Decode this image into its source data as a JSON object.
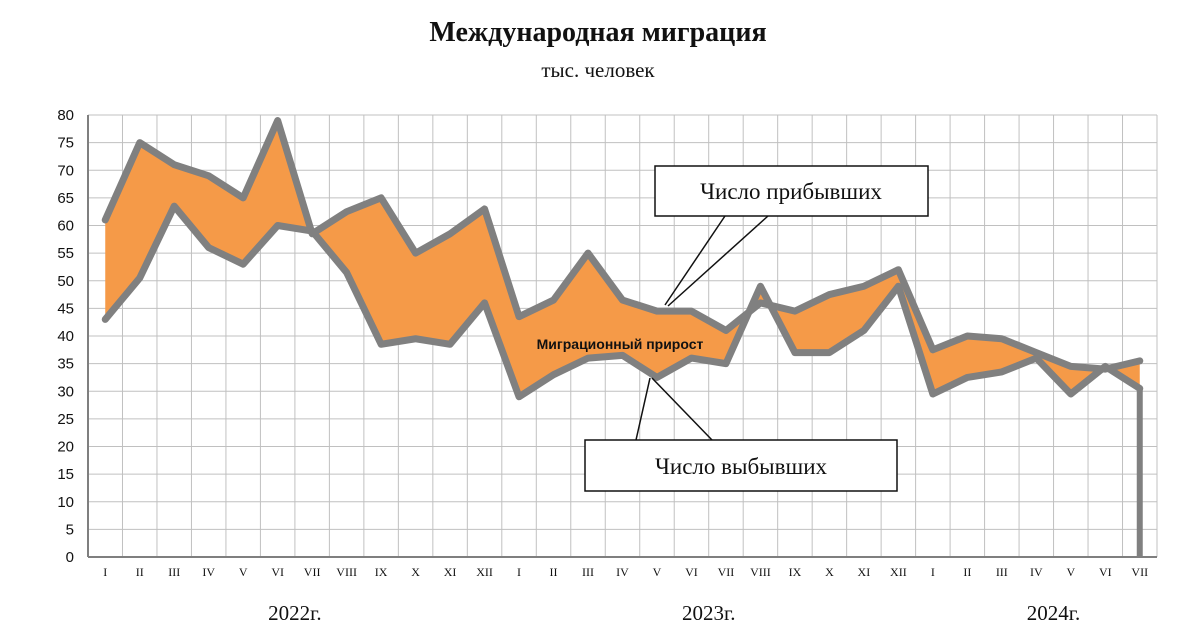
{
  "chart_data": {
    "type": "area",
    "title": "Международная миграция",
    "subtitle": "тыс. человек",
    "ylim": [
      0,
      80
    ],
    "yticks": [
      "0",
      "5",
      "10",
      "15",
      "20",
      "25",
      "30",
      "35",
      "40",
      "45",
      "50",
      "55",
      "60",
      "65",
      "70",
      "75",
      "80"
    ],
    "categories": [
      "I",
      "II",
      "III",
      "IV",
      "V",
      "VI",
      "VII",
      "VIII",
      "IX",
      "X",
      "XI",
      "XII",
      "I",
      "II",
      "III",
      "IV",
      "V",
      "VI",
      "VII",
      "VIII",
      "IX",
      "X",
      "XI",
      "XII",
      "I",
      "II",
      "III",
      "IV",
      "V",
      "VI",
      "VII"
    ],
    "years": [
      {
        "label": "2022г.",
        "center_index": 5.5
      },
      {
        "label": "2023г.",
        "center_index": 17.5
      },
      {
        "label": "2024г.",
        "center_index": 27.5
      }
    ],
    "grid": true,
    "series": [
      {
        "name": "Число прибывших",
        "values": [
          61,
          75,
          71,
          69,
          65,
          79,
          58.5,
          62.5,
          65,
          55,
          58.5,
          63,
          43.5,
          46.5,
          55,
          46.5,
          44.5,
          44.5,
          41,
          46,
          44.5,
          47.5,
          49,
          52,
          37.5,
          40,
          39.5,
          37,
          34.5,
          34,
          35.5
        ]
      },
      {
        "name": "Число выбывших",
        "values": [
          43,
          50.5,
          63.5,
          56,
          53,
          60,
          59,
          51.5,
          38.5,
          39.5,
          38.5,
          46,
          29,
          33,
          36,
          36.5,
          32.5,
          36,
          35,
          49,
          37,
          37,
          41,
          49,
          29.5,
          32.5,
          33.5,
          36,
          29.5,
          34.5,
          30.5
        ]
      }
    ],
    "fill_label": "Миграционный прирост",
    "colors": {
      "fill": "#f59a48",
      "line": "#808080",
      "grid": "#c0c0c0",
      "axis": "#7f7f7f"
    }
  }
}
